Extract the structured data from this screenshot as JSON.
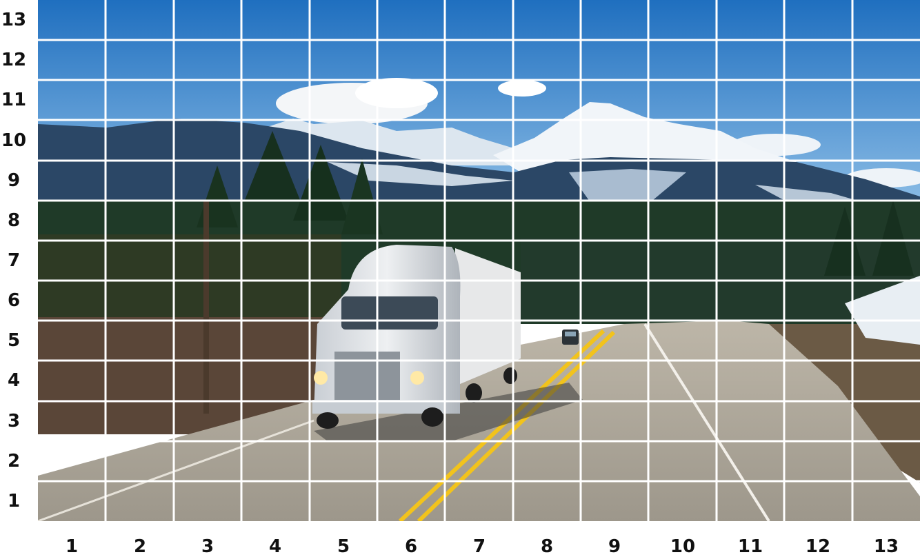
{
  "grid": {
    "columns": 13,
    "rows": 13,
    "x_labels": [
      "1",
      "2",
      "3",
      "4",
      "5",
      "6",
      "7",
      "8",
      "9",
      "10",
      "11",
      "12",
      "13"
    ],
    "y_labels_top_to_bottom": [
      "13",
      "12",
      "11",
      "10",
      "9",
      "8",
      "7",
      "6",
      "5",
      "4",
      "3",
      "2",
      "1"
    ]
  },
  "scene": {
    "subject": "white semi-truck on mountain highway",
    "colors": {
      "sky_top": "#1f6fbf",
      "sky_bottom": "#7fb4e0",
      "snow": "#f4f7fb",
      "mountain": "#2b4766",
      "forest": "#1f3a28",
      "road": "#a59f93",
      "center_line": "#f2c31c",
      "truck": "#d9dde2",
      "grid_line": "#ffffff"
    }
  }
}
